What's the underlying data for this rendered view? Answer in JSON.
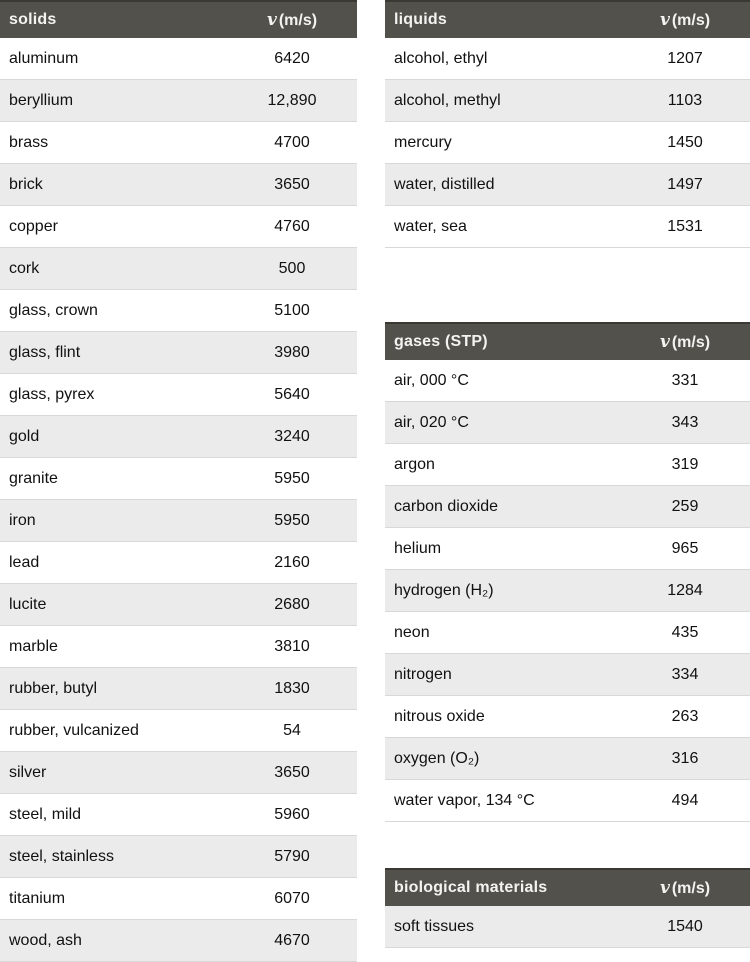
{
  "colors": {
    "header_bg": "#53514b",
    "header_top_edge": "#3a3934",
    "header_text": "#f3f3f1",
    "row_alt_bg": "#ebebeb",
    "row_border": "#d8d8d8",
    "body_text": "#111111"
  },
  "tables": {
    "solids": {
      "title": "solids",
      "velocity_header": {
        "symbol": "v",
        "unit": "(m/s)"
      },
      "rows": [
        {
          "material": "aluminum",
          "speed": "6420"
        },
        {
          "material": "beryllium",
          "speed": "12,890"
        },
        {
          "material": "brass",
          "speed": "4700"
        },
        {
          "material": "brick",
          "speed": "3650"
        },
        {
          "material": "copper",
          "speed": "4760"
        },
        {
          "material": "cork",
          "speed": "500"
        },
        {
          "material": "glass, crown",
          "speed": "5100"
        },
        {
          "material": "glass, flint",
          "speed": "3980"
        },
        {
          "material": "glass, pyrex",
          "speed": "5640"
        },
        {
          "material": "gold",
          "speed": "3240"
        },
        {
          "material": "granite",
          "speed": "5950"
        },
        {
          "material": "iron",
          "speed": "5950"
        },
        {
          "material": "lead",
          "speed": "2160"
        },
        {
          "material": "lucite",
          "speed": "2680"
        },
        {
          "material": "marble",
          "speed": "3810"
        },
        {
          "material": "rubber, butyl",
          "speed": "1830"
        },
        {
          "material": "rubber, vulcanized",
          "speed": "54"
        },
        {
          "material": "silver",
          "speed": "3650"
        },
        {
          "material": "steel, mild",
          "speed": "5960"
        },
        {
          "material": "steel, stainless",
          "speed": "5790"
        },
        {
          "material": "titanium",
          "speed": "6070"
        },
        {
          "material": "wood, ash",
          "speed": "4670"
        }
      ]
    },
    "liquids": {
      "title": "liquids",
      "velocity_header": {
        "symbol": "v",
        "unit": "(m/s)"
      },
      "rows": [
        {
          "material": "alcohol, ethyl",
          "speed": "1207"
        },
        {
          "material": "alcohol, methyl",
          "speed": "1103"
        },
        {
          "material": "mercury",
          "speed": "1450"
        },
        {
          "material": "water, distilled",
          "speed": "1497"
        },
        {
          "material": "water, sea",
          "speed": "1531"
        }
      ]
    },
    "gases": {
      "title": "gases (STP)",
      "velocity_header": {
        "symbol": "v",
        "unit": "(m/s)"
      },
      "rows": [
        {
          "material": "air, 000 °C",
          "speed": "331"
        },
        {
          "material": "air, 020 °C",
          "speed": "343"
        },
        {
          "material": "argon",
          "speed": "319"
        },
        {
          "material": "carbon dioxide",
          "speed": "259"
        },
        {
          "material": "helium",
          "speed": "965"
        },
        {
          "material": "hydrogen (H₂)",
          "speed": "1284"
        },
        {
          "material": "neon",
          "speed": "435"
        },
        {
          "material": "nitrogen",
          "speed": "334"
        },
        {
          "material": "nitrous oxide",
          "speed": "263"
        },
        {
          "material": "oxygen (O₂)",
          "speed": "316"
        },
        {
          "material": "water vapor, 134 °C",
          "speed": "494"
        }
      ]
    },
    "biological": {
      "title": "biological materials",
      "velocity_header": {
        "symbol": "v",
        "unit": "(m/s)"
      },
      "rows": [
        {
          "material": "soft tissues",
          "speed": "1540"
        }
      ]
    }
  }
}
